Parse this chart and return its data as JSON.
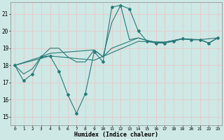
{
  "xlabel": "Humidex (Indice chaleur)",
  "xlim": [
    -0.5,
    23.5
  ],
  "ylim": [
    14.5,
    21.7
  ],
  "yticks": [
    15,
    16,
    17,
    18,
    19,
    20,
    21
  ],
  "xticks": [
    0,
    1,
    2,
    3,
    4,
    5,
    6,
    7,
    8,
    9,
    10,
    11,
    12,
    13,
    14,
    15,
    16,
    17,
    18,
    19,
    20,
    21,
    22,
    23
  ],
  "bg_color": "#cde8e5",
  "grid_color": "#b8d8d5",
  "line_color": "#2a7a78",
  "curve1_x": [
    0,
    1,
    2,
    3,
    4,
    5,
    6,
    7,
    8,
    9,
    10,
    11,
    12,
    13,
    14,
    15,
    16,
    17,
    18,
    19,
    20,
    21,
    22,
    23
  ],
  "curve1_y": [
    18.0,
    17.1,
    17.5,
    18.5,
    18.55,
    17.65,
    16.3,
    15.2,
    16.35,
    18.8,
    18.2,
    21.4,
    21.5,
    21.3,
    20.0,
    19.4,
    19.3,
    19.3,
    19.4,
    19.55,
    19.5,
    19.5,
    19.3,
    19.6
  ],
  "curve2_x": [
    0,
    1,
    2,
    3,
    4,
    5,
    6,
    7,
    8,
    9,
    10,
    11,
    12,
    13,
    14,
    15,
    16,
    17,
    18,
    19,
    20,
    21,
    22,
    23
  ],
  "curve2_y": [
    18.0,
    17.5,
    17.8,
    18.5,
    19.0,
    19.0,
    18.5,
    18.2,
    18.2,
    18.9,
    18.5,
    20.5,
    21.5,
    19.5,
    19.6,
    19.45,
    19.35,
    19.35,
    19.45,
    19.55,
    19.5,
    19.5,
    19.3,
    19.6
  ],
  "curve3_x": [
    0,
    3,
    4,
    9,
    10,
    11,
    14,
    15,
    16,
    17,
    18,
    19,
    20,
    21,
    22,
    23
  ],
  "curve3_y": [
    18.0,
    18.5,
    18.7,
    18.9,
    18.5,
    19.0,
    19.6,
    19.45,
    19.35,
    19.35,
    19.45,
    19.55,
    19.5,
    19.5,
    19.3,
    19.6
  ],
  "curve4_x": [
    0,
    4,
    9,
    14,
    17,
    19,
    21,
    23
  ],
  "curve4_y": [
    18.0,
    18.55,
    18.3,
    19.4,
    19.35,
    19.55,
    19.5,
    19.6
  ]
}
